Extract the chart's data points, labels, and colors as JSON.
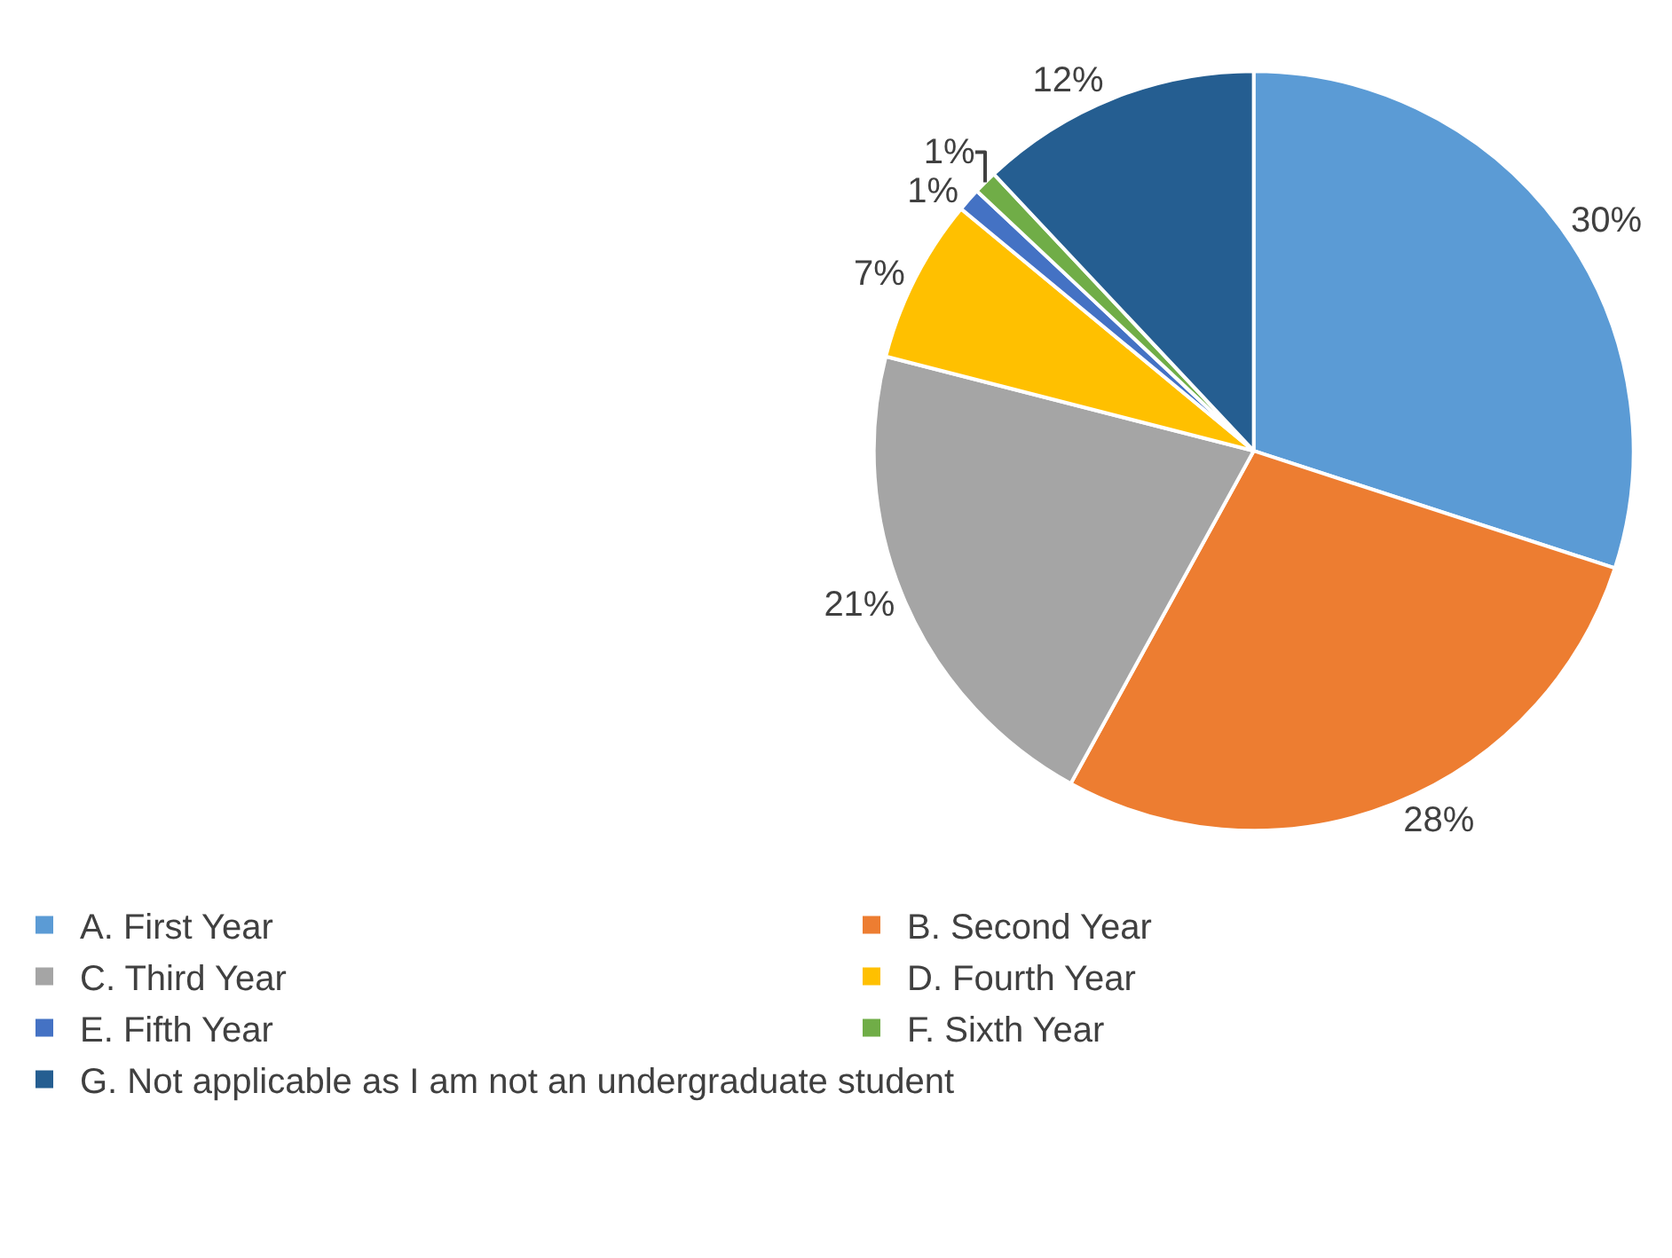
{
  "chart_data": {
    "type": "pie",
    "categories": [
      "A. First Year",
      "B. Second Year",
      "C. Third Year",
      "D. Fourth Year",
      "E. Fifth Year",
      "F. Sixth Year",
      "G. Not applicable as I am not an undergraduate student"
    ],
    "values": [
      30,
      28,
      21,
      7,
      1,
      1,
      12
    ],
    "value_labels": [
      "30%",
      "28%",
      "21%",
      "7%",
      "1%",
      "1%",
      "12%"
    ],
    "colors": [
      "#5b9bd5",
      "#ed7d31",
      "#a5a5a5",
      "#ffc000",
      "#4472c4",
      "#70ad47",
      "#255e91"
    ],
    "legend": "bottom"
  }
}
